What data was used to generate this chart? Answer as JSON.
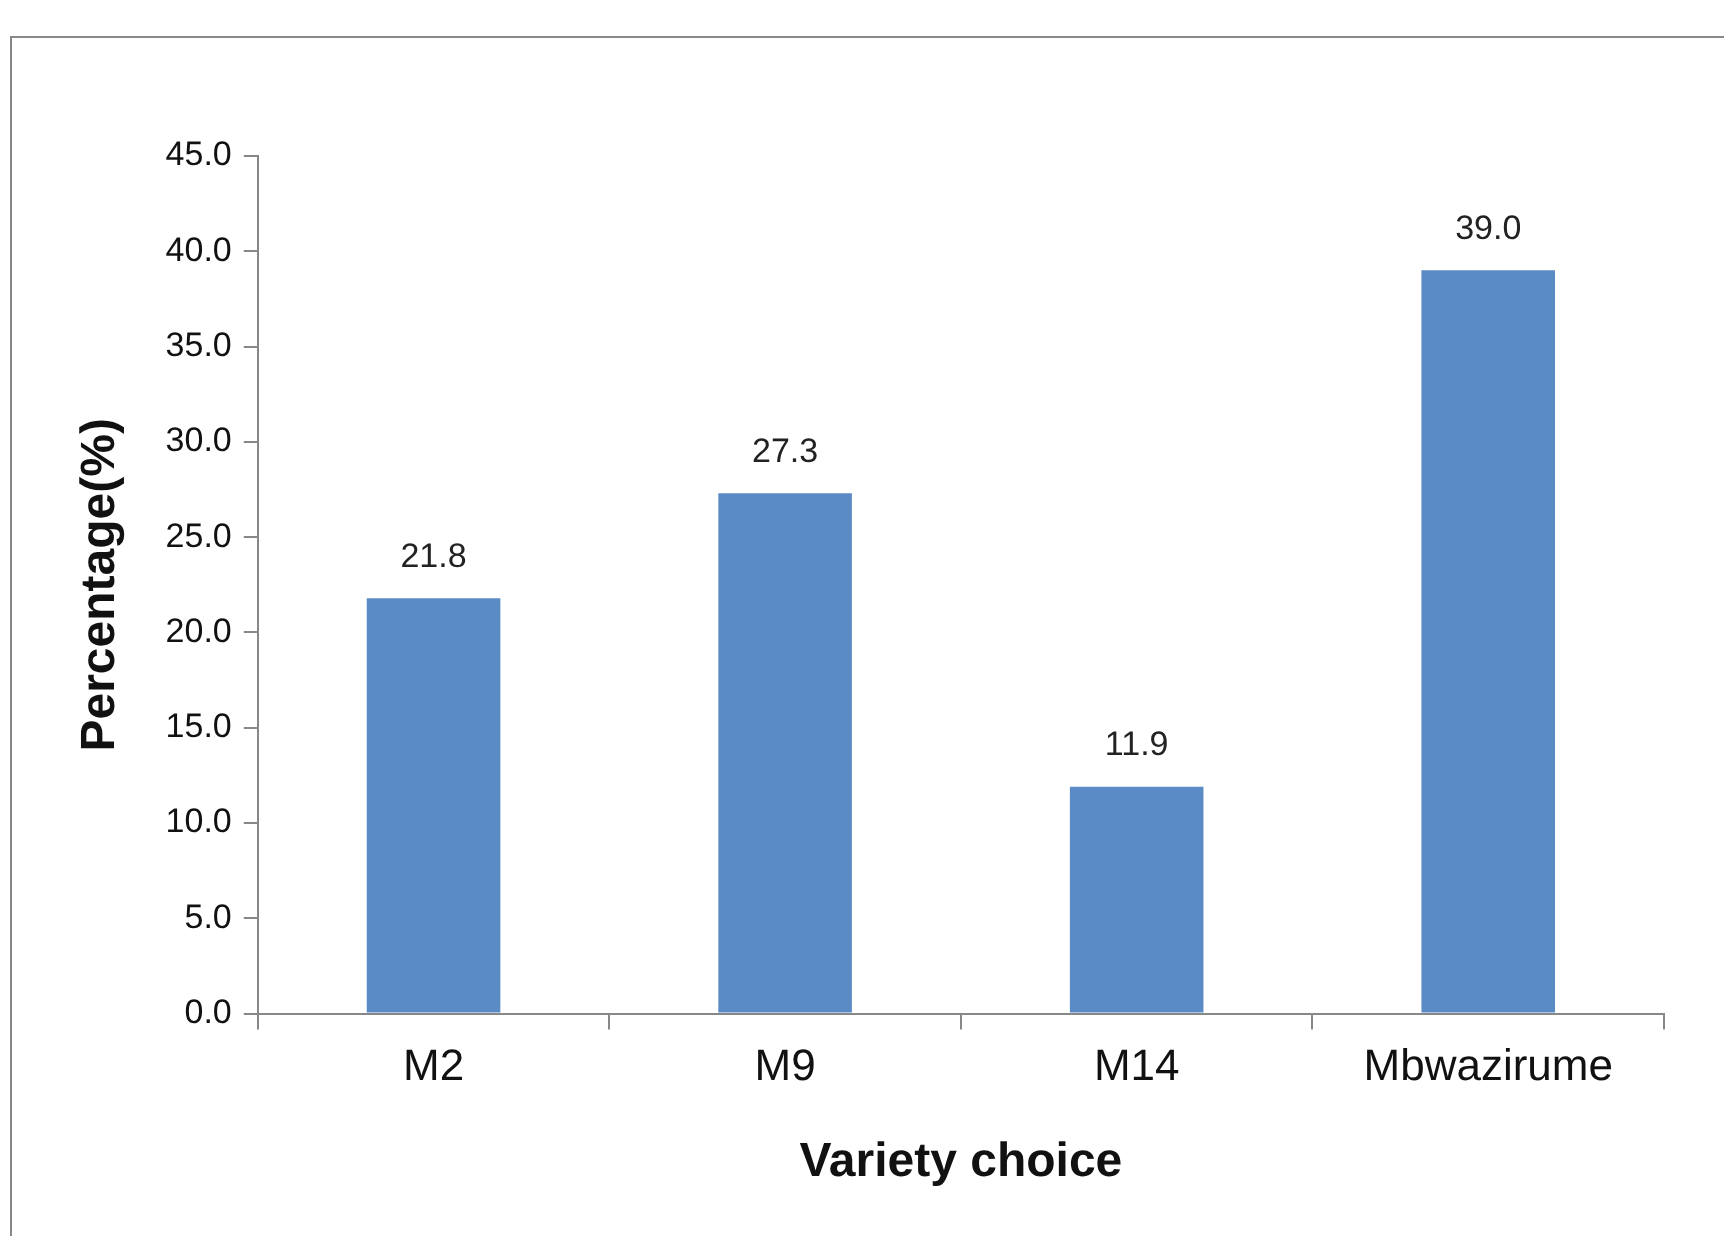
{
  "chart_data": {
    "type": "bar",
    "xlabel": "Variety choice",
    "ylabel": "Percentage(%)",
    "categories": [
      "M2",
      "M9",
      "M14",
      "Mbwazirume"
    ],
    "values": [
      21.8,
      27.3,
      11.9,
      39.0
    ],
    "value_labels": [
      "21.8",
      "27.3",
      "11.9",
      "39.0"
    ],
    "color": "#5b8bc5",
    "ylim": [
      0,
      45
    ],
    "yticks": [
      {
        "value": 0,
        "label": "0.0"
      },
      {
        "value": 5,
        "label": "5.0"
      },
      {
        "value": 10,
        "label": "10.0"
      },
      {
        "value": 15,
        "label": "15.0"
      },
      {
        "value": 20,
        "label": "20.0"
      },
      {
        "value": 25,
        "label": "25.0"
      },
      {
        "value": 30,
        "label": "30.0"
      },
      {
        "value": 35,
        "label": "35.0"
      },
      {
        "value": 40,
        "label": "40.0"
      },
      {
        "value": 45,
        "label": "45.0"
      }
    ],
    "grid": false,
    "legend": false
  }
}
